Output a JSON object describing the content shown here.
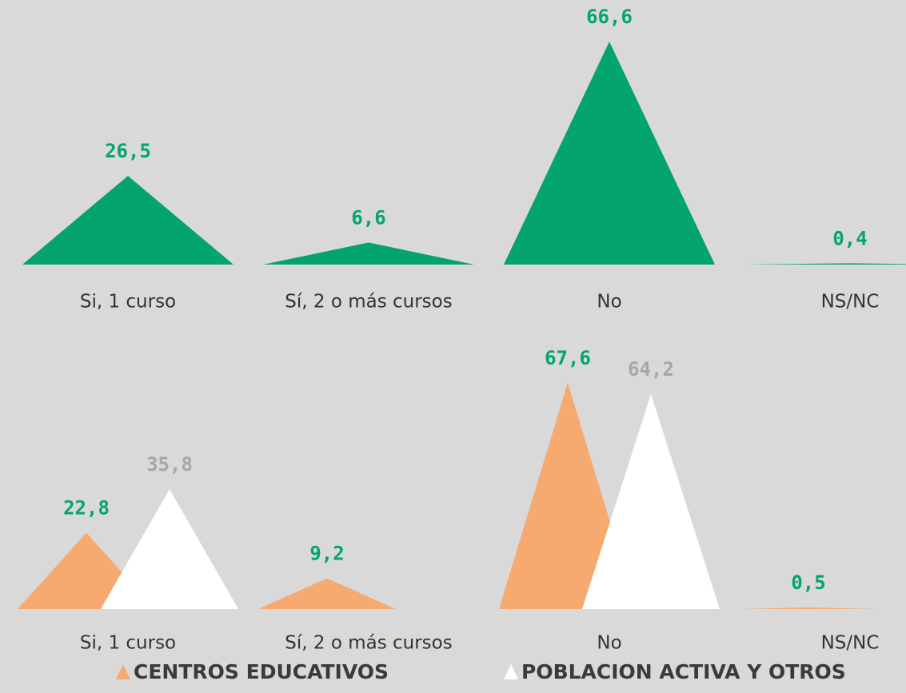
{
  "chart_data": [
    {
      "type": "triangle",
      "categories": [
        "Si, 1 curso",
        "Sí, 2 o más cursos",
        "No",
        "NS/NC"
      ],
      "series": [
        {
          "color": "#03a56d",
          "label_color": "#03a56d",
          "values": [
            26.5,
            6.6,
            66.6,
            0.4
          ],
          "value_labels": [
            "26,5",
            "6,6",
            "66,6",
            "0,4"
          ]
        }
      ]
    },
    {
      "type": "triangle",
      "categories": [
        "Si, 1 curso",
        "Sí, 2 o más cursos",
        "No",
        "NS/NC"
      ],
      "series": [
        {
          "name": "CENTROS EDUCATIVOS",
          "color": "#f6aa70",
          "label_color": "#03a56d",
          "values": [
            22.8,
            9.2,
            67.6,
            0.5
          ],
          "value_labels": [
            "22,8",
            "9,2",
            "67,6",
            "0,5"
          ]
        },
        {
          "name": "POBLACION ACTIVA Y OTROS",
          "color": "#ffffff",
          "label_color": "#a6a6a6",
          "values": [
            35.8,
            null,
            64.2,
            null
          ],
          "value_labels": [
            "35,8",
            null,
            "64,2",
            null
          ]
        }
      ]
    }
  ]
}
